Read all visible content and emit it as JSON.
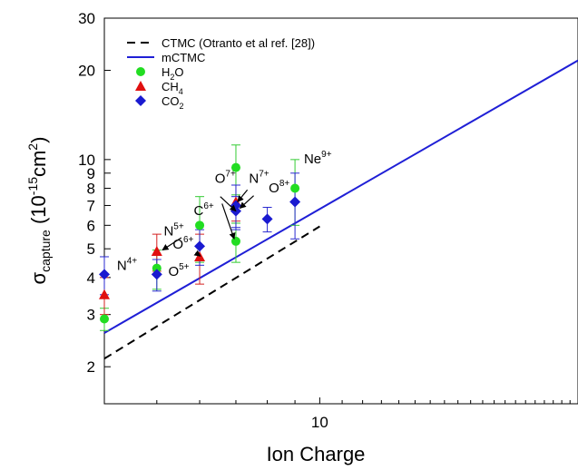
{
  "chart_data": {
    "type": "scatter",
    "xlabel": "Ion Charge",
    "ylabel": {
      "main": "σ",
      "sub": "capture",
      "units_prefix": "(10",
      "units_exp": "-15",
      "units_mid": "cm",
      "units_exp2": "2",
      "units_suffix": ")"
    },
    "xscale": "log",
    "yscale": "log",
    "xlim": [
      4,
      30
    ],
    "ylim": [
      1.5,
      30
    ],
    "xticks": [
      {
        "value": 10,
        "label": "10"
      }
    ],
    "yticks": [
      {
        "value": 2,
        "label": "2"
      },
      {
        "value": 3,
        "label": "3"
      },
      {
        "value": 4,
        "label": "4"
      },
      {
        "value": 5,
        "label": "5"
      },
      {
        "value": 6,
        "label": "6"
      },
      {
        "value": 7,
        "label": "7"
      },
      {
        "value": 8,
        "label": "8"
      },
      {
        "value": 9,
        "label": "9"
      },
      {
        "value": 10,
        "label": "10"
      },
      {
        "value": 20,
        "label": "20"
      },
      {
        "value": 30,
        "label": "30"
      }
    ],
    "legend_position": "top-left",
    "lines": [
      {
        "name": "CTMC (Otranto et al ref. [28])",
        "style": "dashed",
        "color": "#000000",
        "x": [
          4,
          10
        ],
        "y": [
          2.13,
          5.95
        ]
      },
      {
        "name": "mCTMC",
        "style": "solid",
        "color": "#1f1fd6",
        "x": [
          4,
          30
        ],
        "y": [
          2.6,
          21.6
        ]
      }
    ],
    "series": [
      {
        "name": "H2O",
        "name_base": "H",
        "name_sub": "2",
        "name_rest": "O",
        "marker": "circle",
        "color": "#22dd22",
        "errcolor": "#33cc33",
        "x": [
          4,
          5,
          6,
          7,
          7,
          9
        ],
        "y": [
          2.9,
          4.3,
          6.0,
          9.4,
          5.3,
          8.0
        ],
        "err": [
          0.25,
          0.65,
          1.5,
          1.8,
          0.8,
          2.0
        ]
      },
      {
        "name": "CH4",
        "name_base": "CH",
        "name_sub": "4",
        "name_rest": "",
        "marker": "triangle",
        "color": "#e01010",
        "errcolor": "#d42020",
        "x": [
          4,
          5,
          6,
          7
        ],
        "y": [
          3.5,
          4.9,
          4.7,
          7.2
        ],
        "err": [
          0.5,
          0.7,
          0.9,
          1.0
        ]
      },
      {
        "name": "CO2",
        "name_base": "CO",
        "name_sub": "2",
        "name_rest": "",
        "marker": "diamond",
        "color": "#1a1ad0",
        "errcolor": "#2a2ad0",
        "x": [
          4,
          5,
          6,
          7,
          7,
          8,
          9
        ],
        "y": [
          4.1,
          4.1,
          5.1,
          6.7,
          7.0,
          6.3,
          7.2
        ],
        "err": [
          0.6,
          0.5,
          0.7,
          0.8,
          1.2,
          0.6,
          1.8
        ]
      }
    ],
    "annotations": [
      {
        "base": "N",
        "sup": "4+",
        "x": 4.22,
        "y": 4.25
      },
      {
        "base": "O",
        "sup": "5+",
        "x": 5.25,
        "y": 4.05
      },
      {
        "base": "N",
        "sup": "5+",
        "x": 5.15,
        "y": 5.55
      },
      {
        "base": "O",
        "sup": "6+",
        "x": 5.35,
        "y": 5.0
      },
      {
        "base": "C",
        "sup": "6+",
        "x": 5.85,
        "y": 6.5
      },
      {
        "base": "O",
        "sup": "7+",
        "x": 6.4,
        "y": 8.35
      },
      {
        "base": "N",
        "sup": "7+",
        "x": 7.4,
        "y": 8.35
      },
      {
        "base": "O",
        "sup": "8+",
        "x": 8.05,
        "y": 7.75
      },
      {
        "base": "Ne",
        "sup": "9+",
        "x": 9.35,
        "y": 9.7
      }
    ],
    "arrows": [
      {
        "from": [
          5.55,
          5.45
        ],
        "to": [
          5.12,
          4.95
        ]
      },
      {
        "from": [
          5.9,
          4.85
        ],
        "to": [
          6.02,
          4.72
        ]
      },
      {
        "from": [
          6.55,
          7.5
        ],
        "to": [
          7.0,
          6.7
        ]
      },
      {
        "from": [
          6.6,
          7.1
        ],
        "to": [
          6.95,
          5.4
        ]
      },
      {
        "from": [
          7.35,
          7.9
        ],
        "to": [
          7.05,
          7.2
        ]
      },
      {
        "from": [
          7.55,
          7.55
        ],
        "to": [
          7.12,
          6.85
        ]
      }
    ]
  }
}
